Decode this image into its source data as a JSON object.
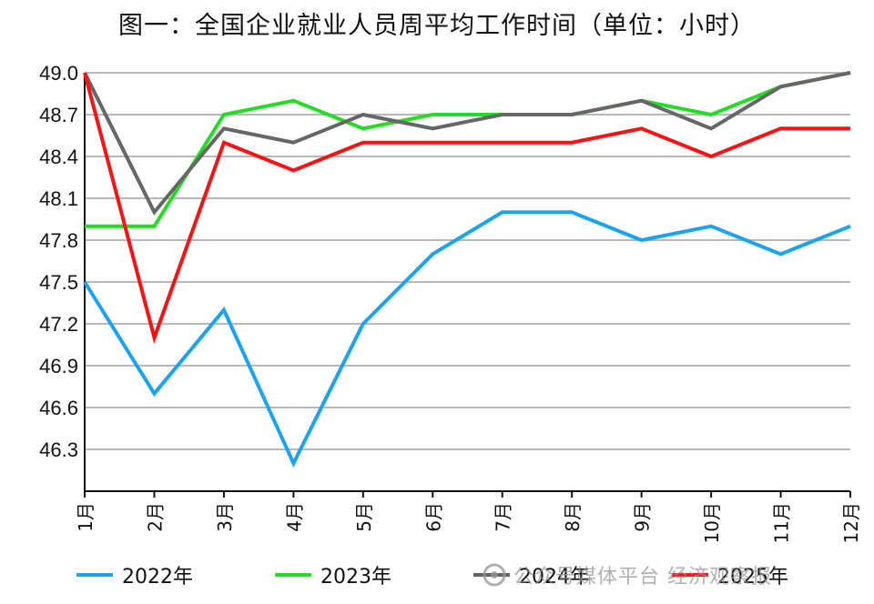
{
  "title": "图一：全国企业就业人员周平均工作时间（单位：小时）",
  "watermark": {
    "text": "公众号媒体平台 经济观察报",
    "icon": "logo-icon"
  },
  "colors": {
    "2022": "#1aa3f2",
    "2023": "#22dd22",
    "2024": "#666666",
    "2025": "#ff1111",
    "grid": "#b8b8b8",
    "axis": "#111111"
  },
  "chart_data": {
    "type": "line",
    "title": "图一：全国企业就业人员周平均工作时间（单位：小时）",
    "xlabel": "",
    "ylabel": "",
    "categories": [
      "1月",
      "2月",
      "3月",
      "4月",
      "5月",
      "6月",
      "7月",
      "8月",
      "9月",
      "10月",
      "11月",
      "12月"
    ],
    "ylim": [
      46.0,
      49.0
    ],
    "yticks": [
      "49.0",
      "48.7",
      "48.4",
      "48.1",
      "47.8",
      "47.5",
      "47.2",
      "46.9",
      "46.6",
      "46.3"
    ],
    "grid": true,
    "legend_position": "bottom",
    "series": [
      {
        "name": "2022年",
        "color": "#1aa3f2",
        "values": [
          47.5,
          46.7,
          47.3,
          46.2,
          47.2,
          47.7,
          48.0,
          48.0,
          47.8,
          47.9,
          47.7,
          47.9
        ]
      },
      {
        "name": "2023年",
        "color": "#22dd22",
        "values": [
          47.9,
          47.9,
          48.7,
          48.8,
          48.6,
          48.7,
          48.7,
          48.7,
          48.8,
          48.7,
          48.9,
          49.0
        ]
      },
      {
        "name": "2024年",
        "color": "#666666",
        "values": [
          49.0,
          48.0,
          48.6,
          48.5,
          48.7,
          48.6,
          48.7,
          48.7,
          48.8,
          48.6,
          48.9,
          49.0
        ]
      },
      {
        "name": "2025年",
        "color": "#ff1111",
        "values": [
          49.0,
          47.1,
          48.5,
          48.3,
          48.5,
          48.5,
          48.5,
          48.5,
          48.6,
          48.4,
          48.6,
          48.6
        ]
      }
    ]
  }
}
